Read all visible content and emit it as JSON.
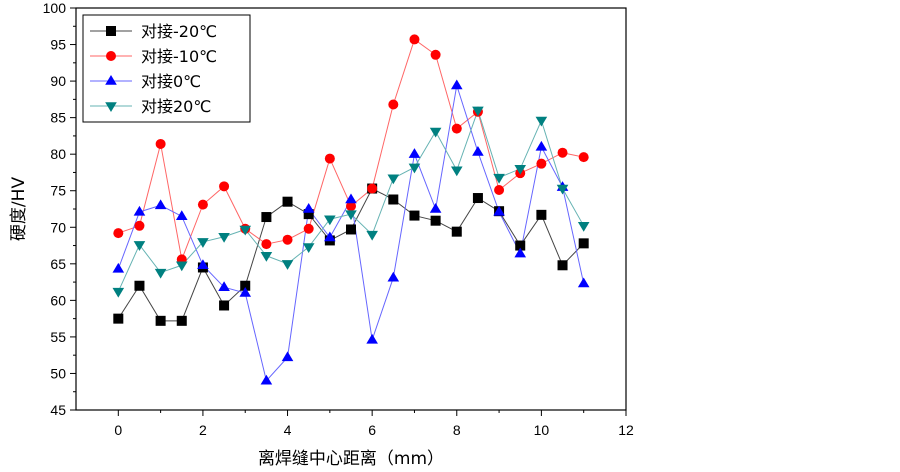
{
  "chart_data": {
    "type": "line",
    "title": "",
    "xlabel": "离焊缝中心距离（mm）",
    "ylabel": "硬度/HV",
    "xlim": [
      -1,
      12
    ],
    "ylim": [
      45,
      100
    ],
    "xticks": [
      0,
      2,
      4,
      6,
      8,
      10,
      12
    ],
    "yticks": [
      45,
      50,
      55,
      60,
      65,
      70,
      75,
      80,
      85,
      90,
      95,
      100
    ],
    "grid": false,
    "legend_position": "top-left",
    "x": [
      0,
      0.5,
      1,
      1.5,
      2,
      2.5,
      3,
      3.5,
      4,
      4.5,
      5,
      5.5,
      6,
      6.5,
      7,
      7.5,
      8,
      8.5,
      9,
      9.5,
      10,
      10.5,
      11
    ],
    "series": [
      {
        "name": "对接-20℃",
        "marker": "square",
        "color": "#000000",
        "line_color": "#444444",
        "values": [
          57.5,
          62,
          57.2,
          57.2,
          64.5,
          59.3,
          62,
          71.4,
          73.5,
          71.8,
          68.2,
          69.7,
          75.3,
          73.8,
          71.6,
          70.9,
          69.4,
          74,
          72.2,
          67.5,
          71.7,
          64.8,
          67.8
        ]
      },
      {
        "name": "对接-10℃",
        "marker": "circle",
        "color": "#ff0000",
        "line_color": "#ff6666",
        "values": [
          69.2,
          70.2,
          81.4,
          65.6,
          73.1,
          75.6,
          69.8,
          67.7,
          68.3,
          69.8,
          79.4,
          72.9,
          75.3,
          86.8,
          95.7,
          93.6,
          83.5,
          85.8,
          75.1,
          77.4,
          78.7,
          80.2,
          79.6
        ]
      },
      {
        "name": "对接0℃",
        "marker": "triangle-up",
        "color": "#0000ff",
        "line_color": "#6666ff",
        "values": [
          64.3,
          72.1,
          73,
          71.5,
          64.8,
          61.8,
          61,
          49,
          52.2,
          72.5,
          68.6,
          73.8,
          54.6,
          63.1,
          80,
          72.5,
          89.4,
          80.3,
          72.1,
          66.4,
          81,
          75.5,
          62.3
        ]
      },
      {
        "name": "对接20℃",
        "marker": "triangle-down",
        "color": "#008080",
        "line_color": "#66b3b3",
        "values": [
          61.2,
          67.6,
          63.8,
          64.8,
          68,
          68.7,
          69.7,
          66.1,
          65,
          67.3,
          71.1,
          71.8,
          69,
          76.7,
          78.2,
          83.1,
          77.8,
          86,
          76.8,
          78,
          84.6,
          75.3,
          70.2
        ]
      }
    ]
  }
}
